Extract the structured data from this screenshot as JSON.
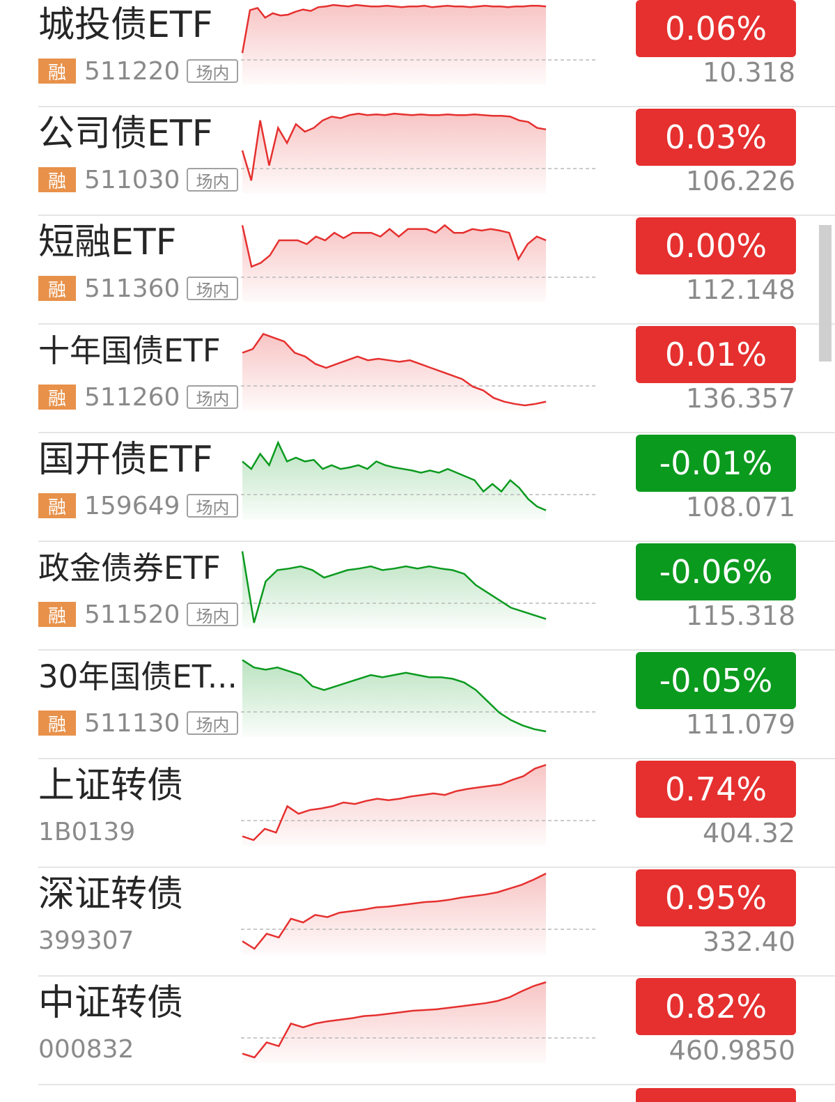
{
  "colors": {
    "up": "#e5302f",
    "down": "#0a9a1e",
    "rong_badge": "#e8914a"
  },
  "rows": [
    {
      "name": "城投债ETF",
      "badge": "融",
      "code": "511220",
      "market": "场内",
      "change": "0.06%",
      "direction": "up",
      "price": "10.318",
      "sparkline": [
        0.35,
        0.92,
        0.95,
        0.82,
        0.88,
        0.85,
        0.86,
        0.9,
        0.93,
        0.91,
        0.96,
        0.97,
        0.99,
        0.98,
        0.97,
        0.99,
        0.98,
        0.97,
        0.97,
        0.98,
        0.97,
        0.96,
        0.97,
        0.97,
        0.98,
        0.96,
        0.97,
        0.98,
        0.97,
        0.97,
        0.96,
        0.97,
        0.98,
        0.97,
        0.97,
        0.96,
        0.97,
        0.97,
        0.98,
        0.98,
        0.97
      ]
    },
    {
      "name": "公司债ETF",
      "badge": "融",
      "code": "511030",
      "market": "场内",
      "change": "0.03%",
      "direction": "up",
      "price": "106.226",
      "sparkline": [
        0.5,
        0.1,
        0.9,
        0.3,
        0.8,
        0.6,
        0.85,
        0.75,
        0.8,
        0.9,
        0.95,
        0.93,
        0.97,
        0.99,
        0.97,
        0.98,
        0.97,
        0.99,
        0.98,
        0.97,
        0.98,
        0.97,
        0.97,
        0.98,
        0.97,
        0.97,
        0.98,
        0.97,
        0.96,
        0.96,
        0.95,
        0.9,
        0.88,
        0.8,
        0.78
      ]
    },
    {
      "name": "短融ETF",
      "badge": "融",
      "code": "511360",
      "market": "场内",
      "change": "0.00%",
      "direction": "up",
      "price": "112.148",
      "sparkline": [
        0.95,
        0.4,
        0.45,
        0.55,
        0.75,
        0.75,
        0.75,
        0.7,
        0.8,
        0.75,
        0.85,
        0.78,
        0.85,
        0.85,
        0.85,
        0.8,
        0.9,
        0.8,
        0.9,
        0.9,
        0.9,
        0.85,
        0.95,
        0.85,
        0.85,
        0.9,
        0.88,
        0.9,
        0.88,
        0.85,
        0.5,
        0.7,
        0.8,
        0.75
      ]
    },
    {
      "name": "十年国债ETF",
      "badge": "融",
      "code": "511260",
      "market": "场内",
      "change": "0.01%",
      "direction": "up",
      "price": "136.357",
      "sparkline": [
        0.7,
        0.75,
        0.95,
        0.9,
        0.85,
        0.7,
        0.65,
        0.55,
        0.5,
        0.55,
        0.6,
        0.65,
        0.6,
        0.62,
        0.6,
        0.58,
        0.6,
        0.55,
        0.5,
        0.45,
        0.4,
        0.35,
        0.25,
        0.2,
        0.1,
        0.05,
        0.02,
        0.0,
        0.02,
        0.05
      ]
    },
    {
      "name": "国开债ETF",
      "badge": "融",
      "code": "159649",
      "market": "场内",
      "change": "-0.01%",
      "direction": "down",
      "price": "108.071",
      "sparkline": [
        0.7,
        0.6,
        0.8,
        0.65,
        0.95,
        0.7,
        0.75,
        0.7,
        0.72,
        0.6,
        0.65,
        0.6,
        0.62,
        0.65,
        0.6,
        0.7,
        0.65,
        0.62,
        0.6,
        0.58,
        0.55,
        0.58,
        0.55,
        0.6,
        0.55,
        0.5,
        0.45,
        0.3,
        0.4,
        0.3,
        0.45,
        0.35,
        0.2,
        0.1,
        0.05
      ]
    },
    {
      "name": "政金债券ETF",
      "badge": "融",
      "code": "511520",
      "market": "场内",
      "change": "-0.06%",
      "direction": "down",
      "price": "115.318",
      "sparkline": [
        0.95,
        0.0,
        0.55,
        0.7,
        0.72,
        0.75,
        0.7,
        0.6,
        0.65,
        0.7,
        0.72,
        0.75,
        0.7,
        0.72,
        0.75,
        0.72,
        0.75,
        0.72,
        0.7,
        0.65,
        0.5,
        0.4,
        0.3,
        0.2,
        0.15,
        0.1,
        0.05
      ]
    },
    {
      "name": "30年国债ET...",
      "badge": "融",
      "code": "511130",
      "market": "场内",
      "change": "-0.05%",
      "direction": "down",
      "price": "111.079",
      "sparkline": [
        0.95,
        0.85,
        0.82,
        0.85,
        0.8,
        0.75,
        0.6,
        0.55,
        0.6,
        0.65,
        0.7,
        0.75,
        0.72,
        0.75,
        0.78,
        0.75,
        0.72,
        0.72,
        0.7,
        0.65,
        0.55,
        0.4,
        0.25,
        0.15,
        0.08,
        0.03,
        0.0
      ]
    },
    {
      "name": "上证转债",
      "badge": "",
      "code": "1B0139",
      "market": "",
      "change": "0.74%",
      "direction": "up",
      "price": "404.32",
      "sparkline": [
        0.05,
        0.0,
        0.15,
        0.1,
        0.45,
        0.35,
        0.4,
        0.42,
        0.45,
        0.5,
        0.48,
        0.52,
        0.55,
        0.53,
        0.55,
        0.58,
        0.6,
        0.62,
        0.6,
        0.65,
        0.68,
        0.7,
        0.72,
        0.74,
        0.8,
        0.85,
        0.95,
        1.0
      ]
    },
    {
      "name": "深证转债",
      "badge": "",
      "code": "399307",
      "market": "",
      "change": "0.95%",
      "direction": "up",
      "price": "332.40",
      "sparkline": [
        0.1,
        0.0,
        0.2,
        0.15,
        0.4,
        0.35,
        0.45,
        0.42,
        0.48,
        0.5,
        0.52,
        0.55,
        0.56,
        0.58,
        0.6,
        0.62,
        0.63,
        0.65,
        0.68,
        0.7,
        0.72,
        0.75,
        0.8,
        0.85,
        0.92,
        1.0
      ]
    },
    {
      "name": "中证转债",
      "badge": "",
      "code": "000832",
      "market": "",
      "change": "0.82%",
      "direction": "up",
      "price": "460.9850",
      "sparkline": [
        0.05,
        0.0,
        0.2,
        0.15,
        0.45,
        0.4,
        0.45,
        0.48,
        0.5,
        0.52,
        0.55,
        0.56,
        0.58,
        0.6,
        0.62,
        0.63,
        0.64,
        0.66,
        0.68,
        0.7,
        0.72,
        0.75,
        0.8,
        0.88,
        0.95,
        1.0
      ]
    }
  ]
}
